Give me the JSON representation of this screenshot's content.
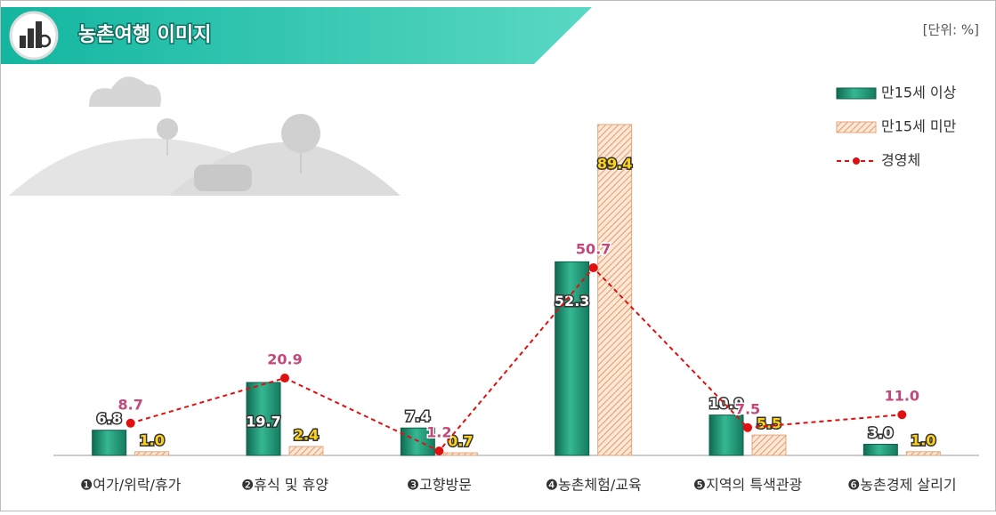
{
  "chart_data": {
    "type": "bar",
    "title": "농촌여행 이미지",
    "unit_note": "[단위: %]",
    "categories": [
      "❶여가/위락/휴가",
      "❷휴식 및 휴양",
      "❸고향방문",
      "❹농촌체험/교육",
      "❺지역의 특색관광",
      "❻농촌경제 살리기"
    ],
    "series": [
      {
        "name": "만15세 이상",
        "type": "bar",
        "color": "#22947a",
        "values": [
          6.8,
          19.7,
          7.4,
          52.3,
          10.9,
          3.0
        ],
        "value_labels": [
          "6.8",
          "19.7",
          "7.4",
          "52.3",
          "10.9",
          "3.0"
        ]
      },
      {
        "name": "만15세 미만",
        "type": "bar",
        "color": "#f0b48a",
        "values": [
          1.0,
          2.4,
          0.7,
          89.4,
          5.5,
          1.0
        ],
        "value_labels": [
          "1.0",
          "2.4",
          "0.7",
          "89.4",
          "5.5",
          "1.0"
        ]
      },
      {
        "name": "경영체",
        "type": "line",
        "color": "#e01010",
        "values": [
          8.7,
          20.9,
          1.2,
          50.7,
          7.5,
          11.0
        ],
        "value_labels": [
          "8.7",
          "20.9",
          "1.2",
          "50.7",
          "7.5",
          "11.0"
        ]
      }
    ],
    "legend": "top-right"
  }
}
